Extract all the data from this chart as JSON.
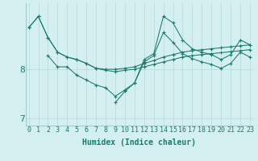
{
  "xlabel": "Humidex (Indice chaleur)",
  "bg_color": "#d4efef",
  "grid_color": "#b8d8d8",
  "line_color": "#1a7a6e",
  "x": [
    0,
    1,
    2,
    3,
    4,
    5,
    6,
    7,
    8,
    9,
    10,
    11,
    12,
    13,
    14,
    15,
    16,
    17,
    18,
    19,
    20,
    21,
    22,
    23
  ],
  "line1": [
    8.85,
    9.08,
    8.65,
    8.35,
    8.25,
    8.2,
    8.12,
    8.02,
    8.0,
    8.0,
    8.02,
    8.05,
    8.12,
    8.18,
    8.25,
    8.3,
    8.35,
    8.38,
    8.4,
    8.42,
    8.44,
    8.46,
    8.48,
    8.5
  ],
  "line2": [
    8.85,
    9.08,
    8.65,
    8.35,
    8.25,
    8.2,
    8.12,
    8.02,
    7.98,
    7.95,
    7.98,
    8.0,
    8.05,
    8.1,
    8.15,
    8.2,
    8.25,
    8.28,
    8.3,
    8.32,
    8.34,
    8.36,
    8.38,
    8.4
  ],
  "line3": [
    null,
    null,
    8.28,
    8.05,
    8.05,
    7.88,
    7.78,
    7.68,
    7.62,
    7.45,
    7.58,
    7.72,
    8.2,
    8.32,
    9.08,
    8.95,
    8.6,
    8.42,
    8.35,
    8.3,
    8.2,
    8.3,
    8.6,
    8.5
  ],
  "line4": [
    null,
    null,
    null,
    null,
    null,
    null,
    null,
    null,
    null,
    7.32,
    7.55,
    7.72,
    8.15,
    8.28,
    8.75,
    8.55,
    8.32,
    8.22,
    8.15,
    8.1,
    8.02,
    8.12,
    8.35,
    8.25
  ],
  "ylim": [
    6.85,
    9.35
  ],
  "yticks": [
    7,
    8
  ],
  "xlim": [
    -0.3,
    23.3
  ],
  "tick_fontsize": 6,
  "label_fontsize": 7
}
